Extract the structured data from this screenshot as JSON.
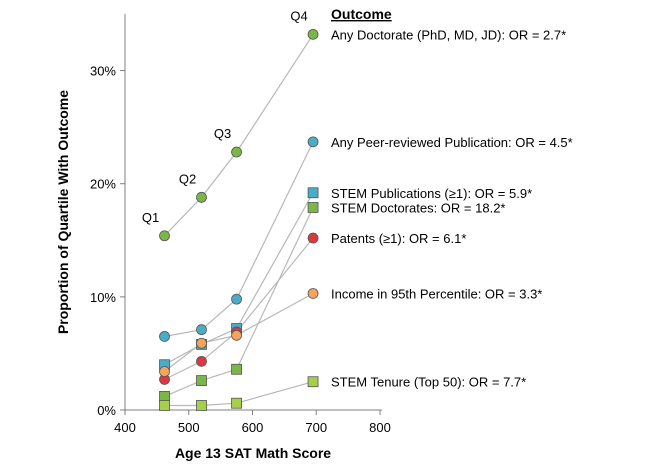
{
  "chart_data": {
    "type": "line",
    "title": "",
    "xlabel": "Age 13 SAT Math Score",
    "ylabel": "Proportion of Quartile With Outcome",
    "xlim": [
      400,
      800
    ],
    "ylim": [
      0,
      0.35
    ],
    "xticks": [
      400,
      500,
      600,
      700,
      800
    ],
    "yticks": [
      {
        "value": 0.0,
        "label": "0%"
      },
      {
        "value": 0.1,
        "label": "10%"
      },
      {
        "value": 0.2,
        "label": "20%"
      },
      {
        "value": 0.3,
        "label": "30%"
      }
    ],
    "grid": false,
    "x": [
      462,
      520,
      575,
      695
    ],
    "quartile_labels": [
      "Q1",
      "Q2",
      "Q3",
      "Q4"
    ],
    "legend_title": "Outcome",
    "series": [
      {
        "name": "Any Doctorate (PhD, MD, JD): OR = 2.7*",
        "marker": "circle",
        "color": "#7ab648",
        "values": [
          0.154,
          0.188,
          0.228,
          0.332
        ]
      },
      {
        "name": "Any Peer-reviewed Publication: OR = 4.5*",
        "marker": "circle",
        "color": "#4bacc6",
        "values": [
          0.065,
          0.071,
          0.098,
          0.237
        ]
      },
      {
        "name": "STEM Publications (≥1): OR = 5.9*",
        "marker": "square",
        "color": "#4bacc6",
        "values": [
          0.04,
          0.058,
          0.072,
          0.192
        ]
      },
      {
        "name": "STEM Doctorates: OR = 18.2*",
        "marker": "square",
        "color": "#7ab648",
        "values": [
          0.012,
          0.026,
          0.036,
          0.179
        ]
      },
      {
        "name": "Patents (≥1): OR = 6.1*",
        "marker": "circle",
        "color": "#d9393f",
        "values": [
          0.027,
          0.043,
          0.069,
          0.152
        ]
      },
      {
        "name": "Income in 95th Percentile: OR = 3.3*",
        "marker": "circle",
        "color": "#f6a35b",
        "values": [
          0.034,
          0.059,
          0.066,
          0.103
        ]
      },
      {
        "name": "STEM Tenure (Top 50): OR = 7.7*",
        "marker": "square",
        "color": "#a4d04a",
        "values": [
          0.004,
          0.004,
          0.006,
          0.025
        ]
      }
    ]
  }
}
